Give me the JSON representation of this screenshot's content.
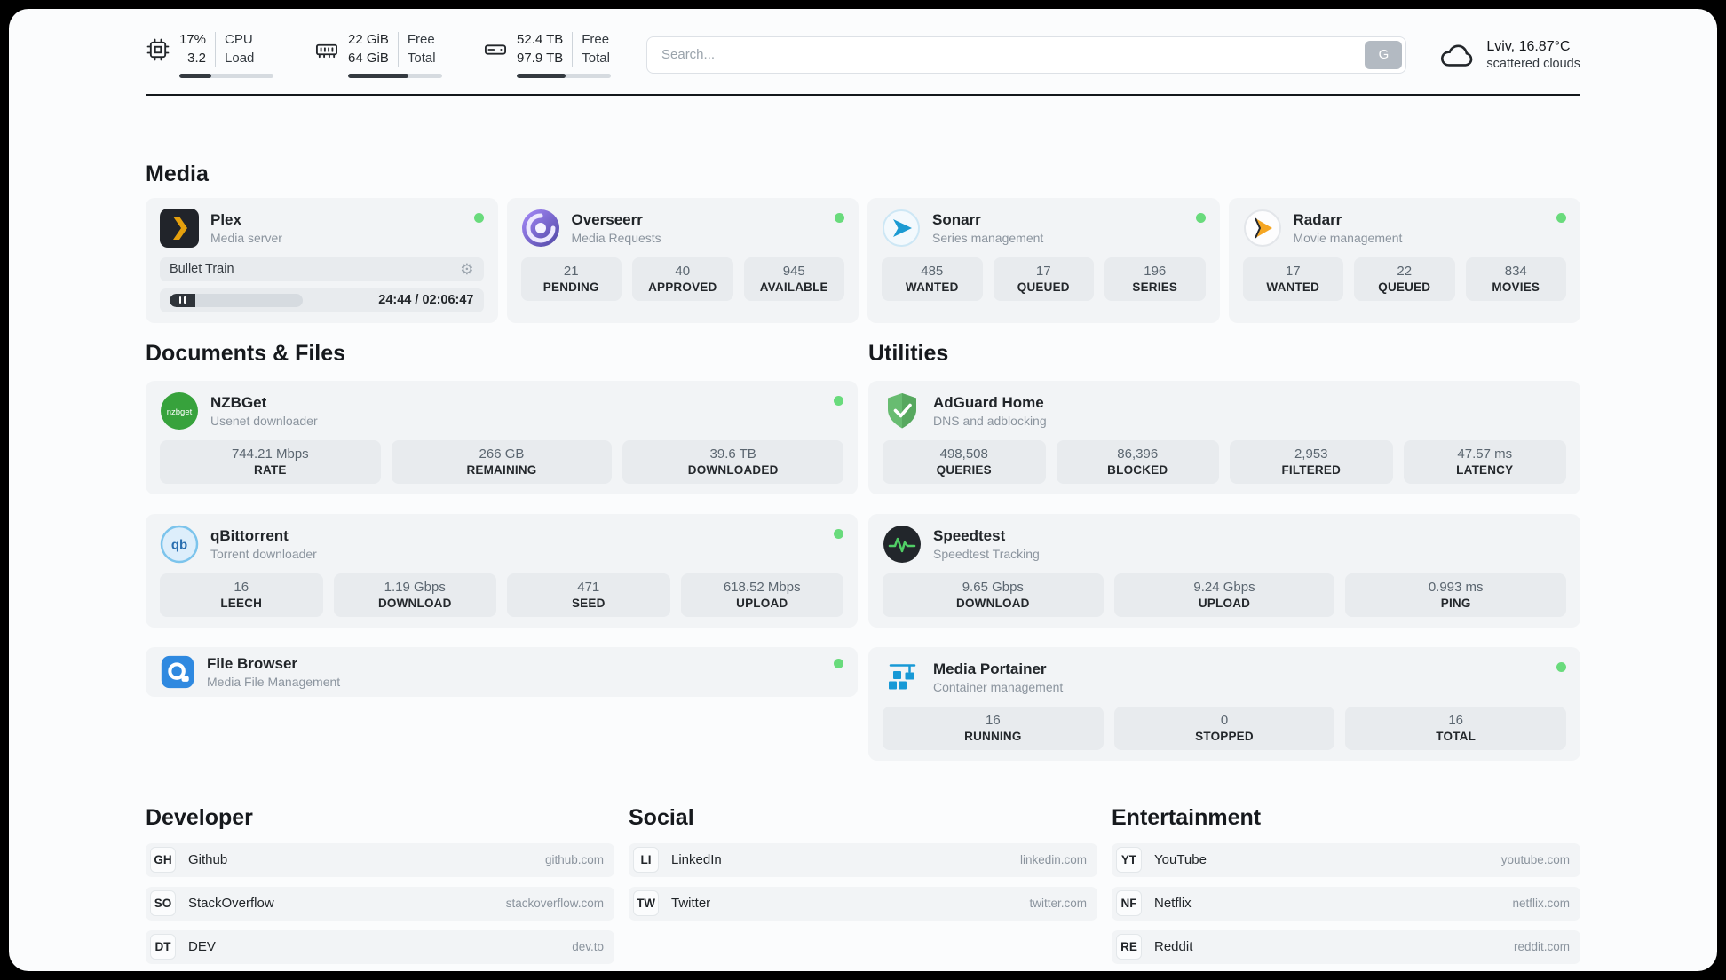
{
  "colors": {
    "status_online": "#69db7c",
    "page_surface": "#fbfcfd",
    "card_bg": "#f2f4f6",
    "stat_bg": "#e8ebee",
    "plex_accent": "#e5a00d",
    "radarr_accent": "#f5a623",
    "sonarr_accent": "#1b9ad2",
    "adguard_accent": "#5fae55",
    "speedtest_accent": "#51cf66",
    "portainer_accent": "#1899d6"
  },
  "header": {
    "cpu": {
      "value_top": "17%",
      "value_bottom": "3.2",
      "label_top": "CPU",
      "label_bottom": "Load",
      "progress_pct": 34
    },
    "ram": {
      "value_top": "22 GiB",
      "value_bottom": "64 GiB",
      "label_top": "Free",
      "label_bottom": "Total",
      "progress_pct": 64
    },
    "disk": {
      "value_top": "52.4 TB",
      "value_bottom": "97.9 TB",
      "label_top": "Free",
      "label_bottom": "Total",
      "progress_pct": 52
    },
    "search": {
      "placeholder": "Search...",
      "button_label": "G"
    },
    "weather": {
      "location": "Lviv, 16.87°C",
      "condition": "scattered clouds"
    }
  },
  "sections": {
    "media": {
      "title": "Media",
      "plex": {
        "name": "Plex",
        "subtitle": "Media server",
        "now_playing": "Bullet Train",
        "time": "24:44 / 02:06:47",
        "progress_pct": 19.5
      },
      "overseerr": {
        "name": "Overseerr",
        "subtitle": "Media Requests",
        "stats": [
          {
            "value": "21",
            "label": "PENDING"
          },
          {
            "value": "40",
            "label": "APPROVED"
          },
          {
            "value": "945",
            "label": "AVAILABLE"
          }
        ]
      },
      "sonarr": {
        "name": "Sonarr",
        "subtitle": "Series management",
        "stats": [
          {
            "value": "485",
            "label": "WANTED"
          },
          {
            "value": "17",
            "label": "QUEUED"
          },
          {
            "value": "196",
            "label": "SERIES"
          }
        ]
      },
      "radarr": {
        "name": "Radarr",
        "subtitle": "Movie management",
        "stats": [
          {
            "value": "17",
            "label": "WANTED"
          },
          {
            "value": "22",
            "label": "QUEUED"
          },
          {
            "value": "834",
            "label": "MOVIES"
          }
        ]
      }
    },
    "documents": {
      "title": "Documents & Files",
      "nzbget": {
        "name": "NZBGet",
        "subtitle": "Usenet downloader",
        "stats": [
          {
            "value": "744.21 Mbps",
            "label": "RATE"
          },
          {
            "value": "266 GB",
            "label": "REMAINING"
          },
          {
            "value": "39.6 TB",
            "label": "DOWNLOADED"
          }
        ]
      },
      "qbittorrent": {
        "name": "qBittorrent",
        "subtitle": "Torrent downloader",
        "stats": [
          {
            "value": "16",
            "label": "LEECH"
          },
          {
            "value": "1.19 Gbps",
            "label": "DOWNLOAD"
          },
          {
            "value": "471",
            "label": "SEED"
          },
          {
            "value": "618.52 Mbps",
            "label": "UPLOAD"
          }
        ]
      },
      "filebrowser": {
        "name": "File Browser",
        "subtitle": "Media File Management"
      }
    },
    "utilities": {
      "title": "Utilities",
      "adguard": {
        "name": "AdGuard Home",
        "subtitle": "DNS and adblocking",
        "stats": [
          {
            "value": "498,508",
            "label": "QUERIES"
          },
          {
            "value": "86,396",
            "label": "BLOCKED"
          },
          {
            "value": "2,953",
            "label": "FILTERED"
          },
          {
            "value": "47.57 ms",
            "label": "LATENCY"
          }
        ]
      },
      "speedtest": {
        "name": "Speedtest",
        "subtitle": "Speedtest Tracking",
        "stats": [
          {
            "value": "9.65 Gbps",
            "label": "DOWNLOAD"
          },
          {
            "value": "9.24 Gbps",
            "label": "UPLOAD"
          },
          {
            "value": "0.993 ms",
            "label": "PING"
          }
        ]
      },
      "portainer": {
        "name": "Media Portainer",
        "subtitle": "Container management",
        "stats": [
          {
            "value": "16",
            "label": "RUNNING"
          },
          {
            "value": "0",
            "label": "STOPPED"
          },
          {
            "value": "16",
            "label": "TOTAL"
          }
        ]
      }
    },
    "developer": {
      "title": "Developer",
      "links": [
        {
          "abbr": "GH",
          "name": "Github",
          "url": "github.com"
        },
        {
          "abbr": "SO",
          "name": "StackOverflow",
          "url": "stackoverflow.com"
        },
        {
          "abbr": "DT",
          "name": "DEV",
          "url": "dev.to"
        }
      ]
    },
    "social": {
      "title": "Social",
      "links": [
        {
          "abbr": "LI",
          "name": "LinkedIn",
          "url": "linkedin.com"
        },
        {
          "abbr": "TW",
          "name": "Twitter",
          "url": "twitter.com"
        }
      ]
    },
    "entertainment": {
      "title": "Entertainment",
      "links": [
        {
          "abbr": "YT",
          "name": "YouTube",
          "url": "youtube.com"
        },
        {
          "abbr": "NF",
          "name": "Netflix",
          "url": "netflix.com"
        },
        {
          "abbr": "RE",
          "name": "Reddit",
          "url": "reddit.com"
        }
      ]
    }
  },
  "icons": {
    "gear": "⚙",
    "nzbget_text": "nzbget",
    "qbittorrent_text": "qb"
  }
}
